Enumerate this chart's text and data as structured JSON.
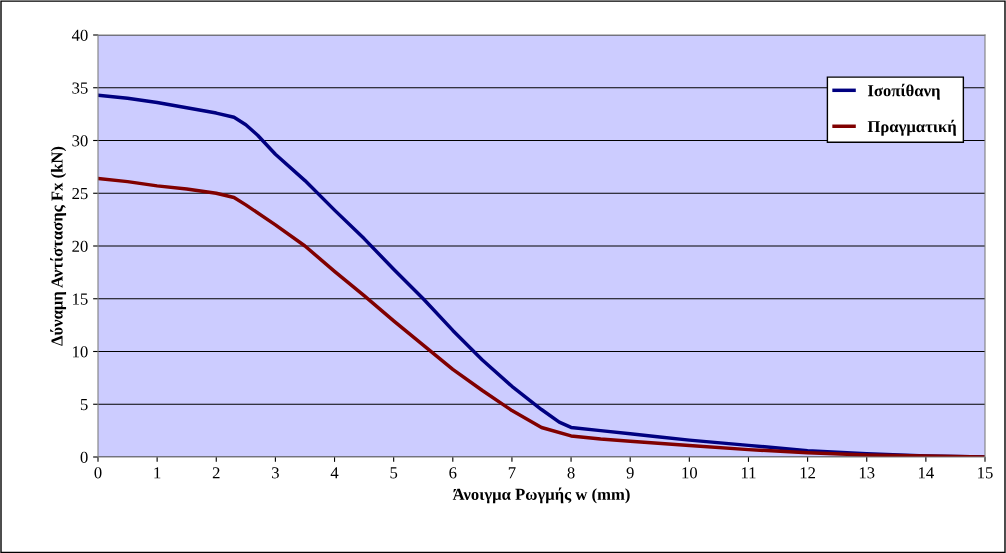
{
  "chart_data": {
    "type": "line",
    "xlabel": "Άνοιγμα Ρωγμής w (mm)",
    "ylabel": "Δύναμη Αντίστασης Fx (kN)",
    "xlim": [
      0,
      15
    ],
    "xticks": [
      0,
      1,
      2,
      3,
      4,
      5,
      6,
      7,
      8,
      9,
      10,
      11,
      12,
      13,
      14,
      15
    ],
    "ylim": [
      0,
      40
    ],
    "yticks": [
      0,
      5,
      10,
      15,
      20,
      25,
      30,
      35,
      40
    ],
    "grid": "y",
    "legend": "top right",
    "marker": "none",
    "line_style": "solid",
    "series": [
      {
        "name": "Ισοπίθανη",
        "color": "#000080",
        "x": [
          0,
          0.5,
          1,
          1.5,
          2,
          2.3,
          2.5,
          2.7,
          3,
          3.5,
          4,
          4.5,
          5,
          5.5,
          6,
          6.5,
          7,
          7.5,
          7.8,
          8,
          8.5,
          9,
          9.5,
          10,
          11,
          12,
          13,
          14,
          15
        ],
        "values": [
          34.3,
          34.0,
          33.6,
          33.1,
          32.6,
          32.2,
          31.5,
          30.5,
          28.7,
          26.2,
          23.4,
          20.7,
          17.8,
          15.0,
          12.0,
          9.2,
          6.7,
          4.5,
          3.3,
          2.8,
          2.5,
          2.2,
          1.9,
          1.6,
          1.1,
          0.6,
          0.3,
          0.1,
          0
        ]
      },
      {
        "name": "Πραγματική",
        "color": "#800000",
        "x": [
          0,
          0.5,
          1,
          1.5,
          2,
          2.3,
          2.5,
          3,
          3.5,
          4,
          4.5,
          5,
          5.5,
          6,
          6.5,
          7,
          7.5,
          8,
          8.5,
          9,
          10,
          11,
          12,
          13,
          14,
          15
        ],
        "values": [
          26.4,
          26.1,
          25.7,
          25.4,
          25.0,
          24.6,
          23.9,
          22.0,
          20.0,
          17.6,
          15.3,
          12.9,
          10.6,
          8.3,
          6.3,
          4.4,
          2.8,
          2.0,
          1.7,
          1.5,
          1.1,
          0.7,
          0.4,
          0.2,
          0.1,
          0
        ]
      }
    ]
  }
}
